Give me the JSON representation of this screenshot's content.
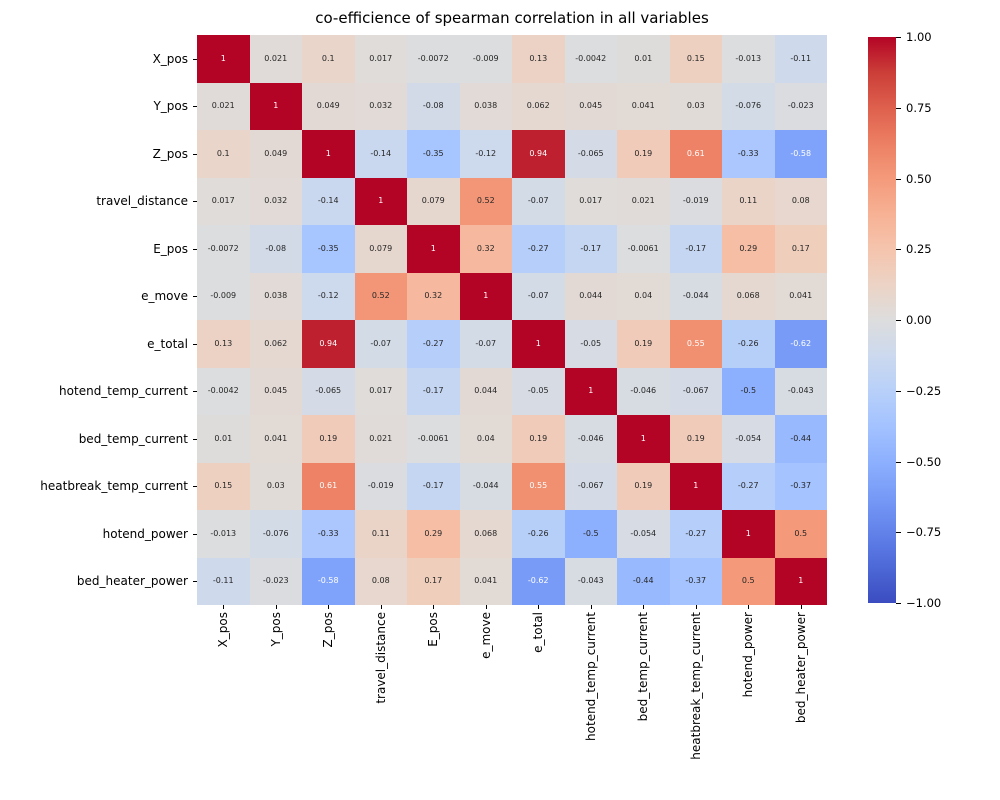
{
  "chart_data": {
    "type": "heatmap",
    "title": "co-efficience of spearman correlation in all variables",
    "colormap": "coolwarm",
    "vmin": -1,
    "vmax": 1,
    "annotated": true,
    "grid": false,
    "legend_position": "colorbar-right",
    "variables": [
      "X_pos",
      "Y_pos",
      "Z_pos",
      "travel_distance",
      "E_pos",
      "e_move",
      "e_total",
      "hotend_temp_current",
      "bed_temp_current",
      "heatbreak_temp_current",
      "hotend_power",
      "bed_heater_power"
    ],
    "matrix": [
      [
        1,
        0.021,
        0.1,
        0.017,
        -0.0072,
        -0.009,
        0.13,
        -0.0042,
        0.01,
        0.15,
        -0.013,
        -0.11
      ],
      [
        0.021,
        1,
        0.049,
        0.032,
        -0.08,
        0.038,
        0.062,
        0.045,
        0.041,
        0.03,
        -0.076,
        -0.023
      ],
      [
        0.1,
        0.049,
        1,
        -0.14,
        -0.35,
        -0.12,
        0.94,
        -0.065,
        0.19,
        0.61,
        -0.33,
        -0.58
      ],
      [
        0.017,
        0.032,
        -0.14,
        1,
        0.079,
        0.52,
        -0.07,
        0.017,
        0.021,
        -0.019,
        0.11,
        0.08
      ],
      [
        -0.0072,
        -0.08,
        -0.35,
        0.079,
        1,
        0.32,
        -0.27,
        -0.17,
        -0.0061,
        -0.17,
        0.29,
        0.17
      ],
      [
        -0.009,
        0.038,
        -0.12,
        0.52,
        0.32,
        1,
        -0.07,
        0.044,
        0.04,
        -0.044,
        0.068,
        0.041
      ],
      [
        0.13,
        0.062,
        0.94,
        -0.07,
        -0.27,
        -0.07,
        1,
        -0.05,
        0.19,
        0.55,
        -0.26,
        -0.62
      ],
      [
        -0.0042,
        0.045,
        -0.065,
        0.017,
        -0.17,
        0.044,
        -0.05,
        1,
        -0.046,
        -0.067,
        -0.5,
        -0.043
      ],
      [
        0.01,
        0.041,
        0.19,
        0.021,
        -0.0061,
        0.04,
        0.19,
        -0.046,
        1,
        0.19,
        -0.054,
        -0.44
      ],
      [
        0.15,
        0.03,
        0.61,
        -0.019,
        -0.17,
        -0.044,
        0.55,
        -0.067,
        0.19,
        1,
        -0.27,
        -0.37
      ],
      [
        -0.013,
        -0.076,
        -0.33,
        0.11,
        0.29,
        0.068,
        -0.26,
        -0.5,
        -0.054,
        -0.27,
        1,
        0.5
      ],
      [
        -0.11,
        -0.023,
        -0.58,
        0.08,
        0.17,
        0.041,
        -0.62,
        -0.043,
        -0.44,
        -0.37,
        0.5,
        1
      ]
    ],
    "colorbar": {
      "tick_values": [
        1,
        0.75,
        0.5,
        0.25,
        0,
        -0.25,
        -0.5,
        -0.75,
        -1
      ],
      "tick_labels": [
        "1.00",
        "0.75",
        "0.50",
        "0.25",
        "0.00",
        "−0.25",
        "−0.50",
        "−0.75",
        "−1.00"
      ]
    },
    "colors": {
      "max_color": "#b40426",
      "mid_color": "#dddddd",
      "min_color": "#3b4cc0",
      "dark_text": "#262626",
      "light_text": "#ffffff"
    }
  }
}
